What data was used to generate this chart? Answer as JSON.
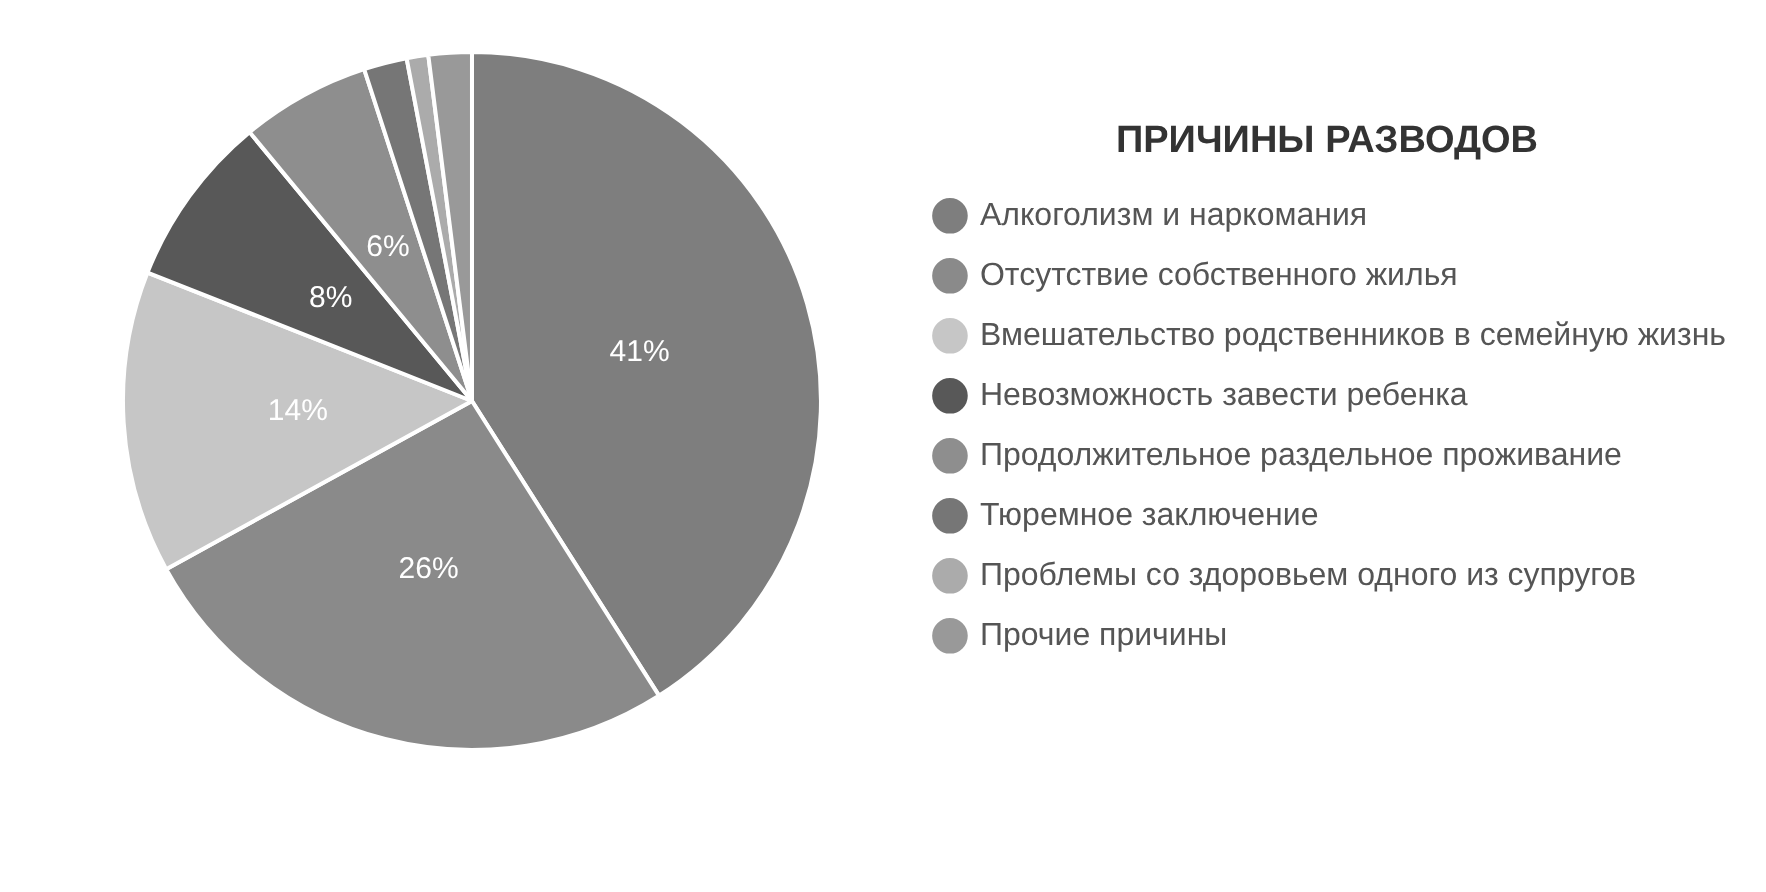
{
  "chart_data": {
    "type": "pie",
    "legend_title": "ПРИЧИНЫ РАЗВОДОВ",
    "legend": "right",
    "categories": [
      "Алкоголизм и наркомания",
      "Отсутствие собственного жилья",
      "Вмешательство родственников в семейную жизнь",
      "Невозможность завести ребенка",
      "Продолжительное раздельное проживание",
      "Тюремное заключение",
      "Проблемы со здоровьем одного из супругов",
      "Прочие причины"
    ],
    "values": [
      41,
      26,
      14,
      8,
      6,
      2,
      1,
      2
    ],
    "value_labels": [
      "41%",
      "26%",
      "14%",
      "8%",
      "6%",
      null,
      null,
      null
    ],
    "colors": [
      "#7e7e7e",
      "#8a8a8a",
      "#c6c6c6",
      "#585858",
      "#8e8e8e",
      "#767676",
      "#ababab",
      "#999999"
    ]
  }
}
